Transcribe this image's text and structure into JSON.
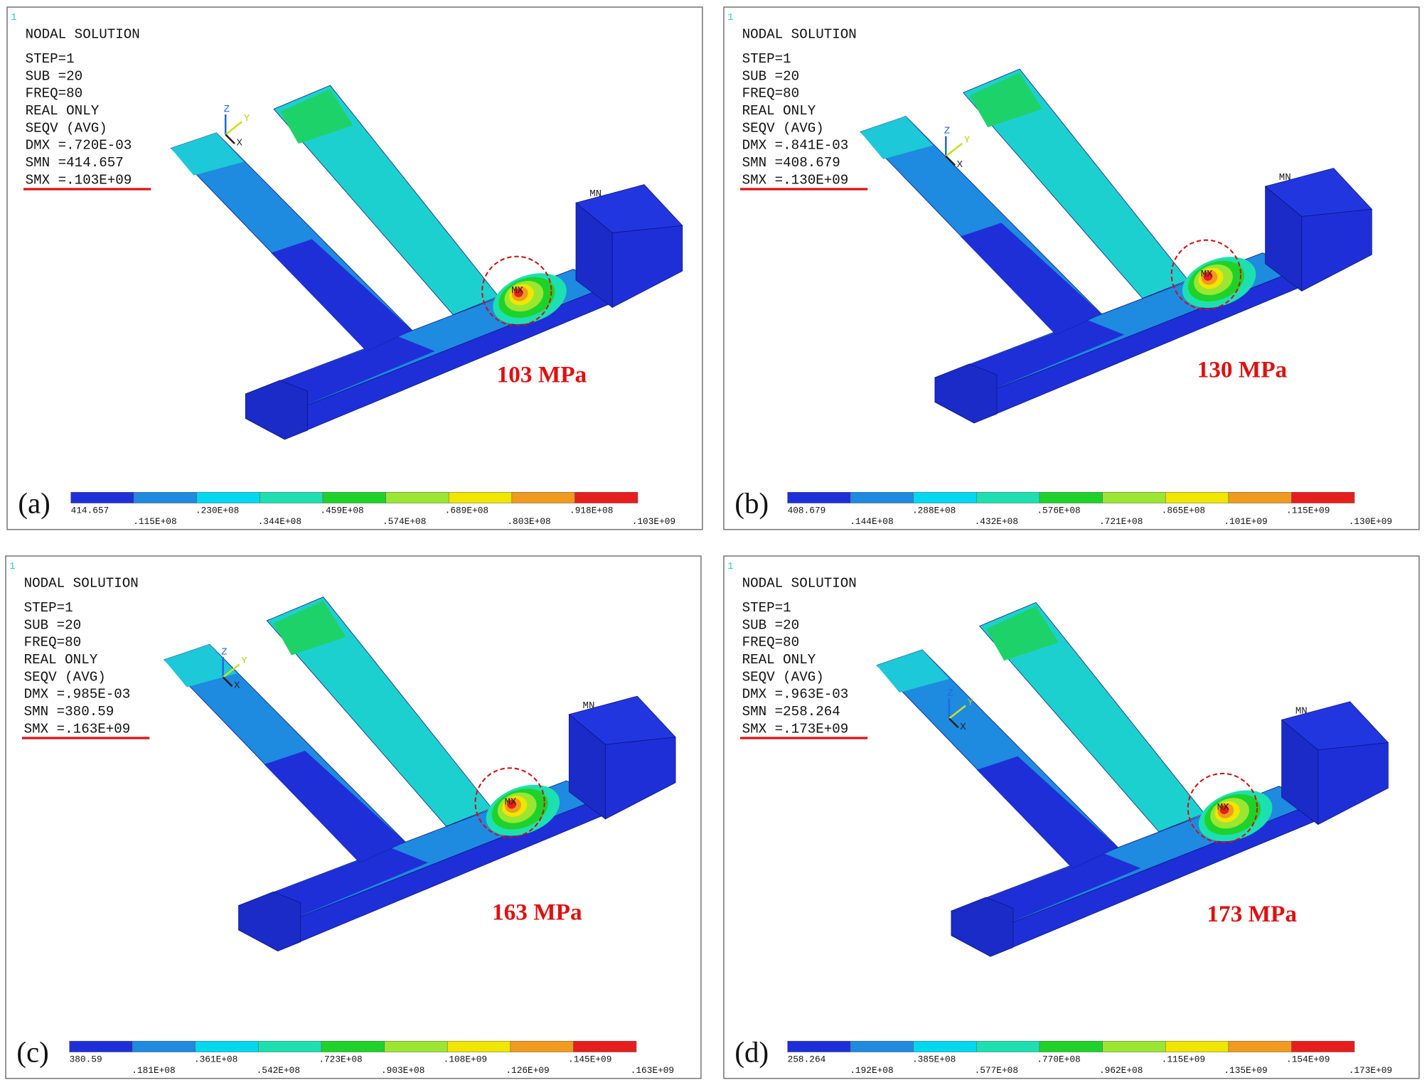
{
  "panels": [
    {
      "label": "(a)",
      "frame": "1",
      "lines": [
        "NODAL SOLUTION",
        "STEP=1",
        "SUB =20",
        "FREQ=80",
        "REAL ONLY",
        "SEQV     (AVG)",
        "DMX =.720E-03",
        "SMN =414.657",
        "SMX =.103E+09"
      ],
      "triad": [
        "Z",
        "Y",
        "X"
      ],
      "nodes": [
        "MN",
        "MX"
      ],
      "annotation": "103 MPa",
      "legend": [
        "414.657",
        ".115E+08",
        ".230E+08",
        ".344E+08",
        ".459E+08",
        ".574E+08",
        ".689E+08",
        ".803E+08",
        ".918E+08",
        ".103E+09"
      ]
    },
    {
      "label": "(b)",
      "frame": "1",
      "lines": [
        "NODAL SOLUTION",
        "STEP=1",
        "SUB =20",
        "FREQ=80",
        "REAL ONLY",
        "SEQV     (AVG)",
        "DMX =.841E-03",
        "SMN =408.679",
        "SMX =.130E+09"
      ],
      "triad": [
        "Z",
        "Y",
        "X"
      ],
      "nodes": [
        "MN",
        "MX"
      ],
      "annotation": "130 MPa",
      "legend": [
        "408.679",
        ".144E+08",
        ".288E+08",
        ".432E+08",
        ".576E+08",
        ".721E+08",
        ".865E+08",
        ".101E+09",
        ".115E+09",
        ".130E+09"
      ]
    },
    {
      "label": "(c)",
      "frame": "1",
      "lines": [
        "NODAL SOLUTION",
        "STEP=1",
        "SUB =20",
        "FREQ=80",
        "REAL ONLY",
        "SEQV     (AVG)",
        "DMX =.985E-03",
        "SMN =380.59",
        "SMX =.163E+09"
      ],
      "triad": [
        "Z",
        "Y",
        "X"
      ],
      "nodes": [
        "MN",
        "MX"
      ],
      "annotation": "163 MPa",
      "legend": [
        "380.59",
        ".181E+08",
        ".361E+08",
        ".542E+08",
        ".723E+08",
        ".903E+08",
        ".108E+09",
        ".126E+09",
        ".145E+09",
        ".163E+09"
      ]
    },
    {
      "label": "(d)",
      "frame": "1",
      "lines": [
        "NODAL SOLUTION",
        "STEP=1",
        "SUB =20",
        "FREQ=80",
        "REAL ONLY",
        "SEQV     (AVG)",
        "DMX =.963E-03",
        "SMN =258.264",
        "SMX =.173E+09"
      ],
      "triad": [
        "Z",
        "Y",
        "X"
      ],
      "nodes": [
        "MN",
        "MX"
      ],
      "annotation": "173 MPa",
      "legend": [
        "258.264",
        ".192E+08",
        ".385E+08",
        ".577E+08",
        ".770E+08",
        ".962E+08",
        ".115E+09",
        ".135E+09",
        ".154E+09",
        ".173E+09"
      ]
    }
  ]
}
